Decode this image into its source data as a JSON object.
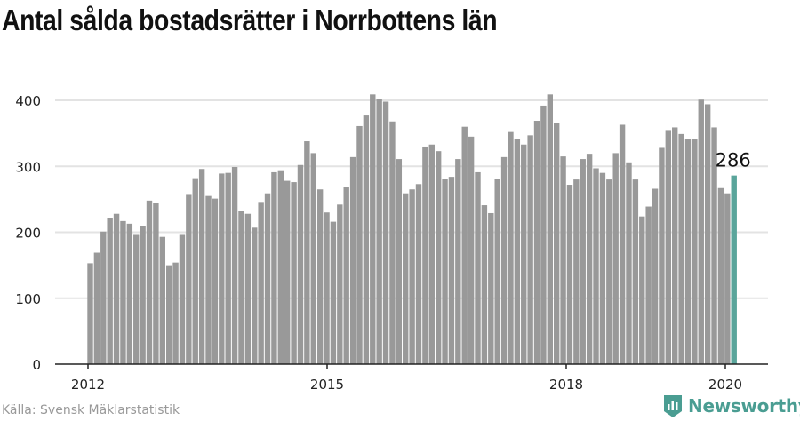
{
  "title": "Antal sålda bostadsrätter i Norrbottens län",
  "source": "Källa: Svensk Mäklarstatistik",
  "brand": "Newsworthy",
  "colors": {
    "bar": "#999999",
    "highlight": "#5aa59b",
    "grid": "#e3e3e3",
    "axis": "#222222",
    "brand": "#4a9d92"
  },
  "chart_data": {
    "type": "bar",
    "title": "Antal sålda bostadsrätter i Norrbottens län",
    "xlabel": "",
    "ylabel": "",
    "ylim": [
      0,
      400
    ],
    "yticks": [
      0,
      100,
      200,
      300,
      400
    ],
    "xticks": [
      {
        "label": "2012",
        "index": 0
      },
      {
        "label": "2015",
        "index": 36
      },
      {
        "label": "2018",
        "index": 72
      },
      {
        "label": "2020",
        "index": 96
      }
    ],
    "start": "2012-01",
    "frequency": "monthly",
    "grid": true,
    "highlight_last": true,
    "last_label": "286",
    "values": [
      153,
      169,
      201,
      221,
      228,
      217,
      213,
      196,
      210,
      248,
      244,
      193,
      150,
      154,
      196,
      258,
      282,
      296,
      255,
      251,
      289,
      290,
      299,
      233,
      228,
      207,
      246,
      259,
      291,
      294,
      278,
      276,
      302,
      338,
      320,
      265,
      230,
      216,
      242,
      268,
      314,
      361,
      377,
      409,
      402,
      398,
      368,
      311,
      259,
      265,
      273,
      330,
      333,
      323,
      281,
      284,
      311,
      360,
      345,
      291,
      241,
      229,
      281,
      314,
      352,
      341,
      333,
      347,
      369,
      392,
      409,
      365,
      315,
      272,
      280,
      311,
      319,
      297,
      290,
      280,
      320,
      363,
      306,
      280,
      224,
      239,
      266,
      328,
      355,
      359,
      349,
      342,
      342,
      401,
      394,
      359,
      267,
      259,
      286
    ]
  }
}
